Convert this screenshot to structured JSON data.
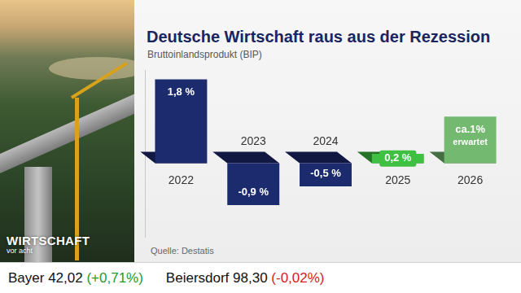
{
  "chart_data": {
    "type": "bar",
    "title": "Deutsche Wirtschaft raus aus der Rezession",
    "subtitle": "Bruttoinlandsprodukt (BIP)",
    "source": "Quelle: Destatis",
    "categories": [
      "2022",
      "2023",
      "2024",
      "2025",
      "2026"
    ],
    "values": [
      1.8,
      -0.9,
      -0.5,
      0.2,
      1
    ],
    "value_labels": [
      "1,8 %",
      "-0,9 %",
      "-0,5 %",
      "0,2 %",
      "ca.1%"
    ],
    "annotations": [
      {
        "category": "2026",
        "text": "erwartet"
      }
    ],
    "colors": [
      "#1c2a6e",
      "#1c2a6e",
      "#1c2a6e",
      "#3fc043",
      "#73b96f"
    ],
    "ylim": [
      -1.6,
      2.0
    ],
    "grid": false,
    "tick_labels": "x",
    "data_labels": true
  },
  "logo": {
    "title": "WIRTSCHAFT",
    "subtitle": "vor acht"
  },
  "ticker": [
    {
      "name": "Bayer",
      "price": "42,02",
      "change": "(+0,71%)",
      "color": "#1e9a2e"
    },
    {
      "name": "Beiersdorf",
      "price": "98,30",
      "change": "(-0,02%)",
      "color": "#d42020"
    }
  ]
}
